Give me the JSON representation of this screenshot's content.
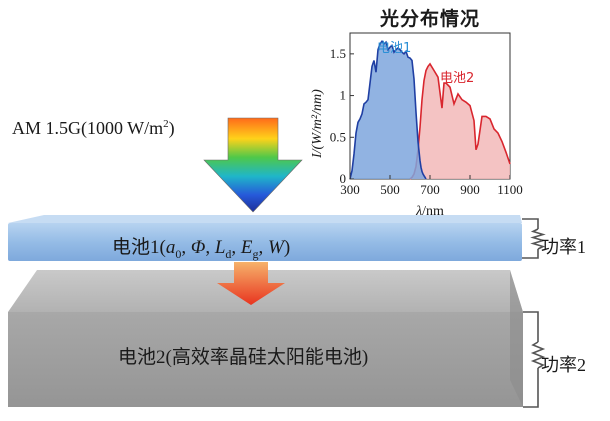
{
  "illumination": {
    "label_prefix": "AM 1.5G(1000 W/m",
    "label_exp": "2",
    "label_suffix": ")"
  },
  "cell1": {
    "name": "电池1",
    "params_open": "(",
    "a0_sym": "a",
    "a0_sub": "0",
    "phi_sym": "Φ",
    "ld_sym": "L",
    "ld_sub": "d",
    "eg_sym": "E",
    "eg_sub": "g",
    "w_sym": "W",
    "sep": ", ",
    "params_close": ")"
  },
  "cell2": {
    "label": "电池2(高效率晶硅太阳能电池)"
  },
  "loads": {
    "load1": "功率1",
    "load2": "功率2"
  },
  "colors": {
    "cell1_fill": "#9cc2e8",
    "cell2_fill": "#a9a9a9",
    "curve_cell1": "#1f3fa3",
    "curve_cell2": "#d9262e",
    "fill_cell1": "#7ea6dd",
    "fill_cell2": "#f2b9b9",
    "legend_cell1": "#2a8fd6",
    "legend_cell2": "#d9262e"
  },
  "chart_data": {
    "type": "area",
    "title": "光分布情况",
    "xlabel_sym": "λ",
    "xlabel_unit": "/nm",
    "ylabel": "I/(W/m²/nm)",
    "xlim": [
      300,
      1100
    ],
    "ylim": [
      0,
      1.75
    ],
    "xticks": [
      "300",
      "500",
      "700",
      "900",
      "1100"
    ],
    "yticks": [
      "0",
      "0.5",
      "1",
      "1.5"
    ],
    "xtick_values": [
      300,
      500,
      700,
      900,
      1100
    ],
    "ytick_values": [
      0,
      0.5,
      1,
      1.5
    ],
    "grid": false,
    "series": [
      {
        "name": "电池1",
        "x": [
          300,
          310,
          320,
          330,
          340,
          350,
          360,
          370,
          380,
          390,
          400,
          410,
          420,
          430,
          440,
          450,
          460,
          470,
          480,
          490,
          500,
          510,
          520,
          530,
          540,
          550,
          560,
          570,
          580,
          590,
          600,
          610,
          620,
          630,
          640,
          650,
          655,
          660,
          665,
          670,
          675,
          680
        ],
        "values": [
          0.0,
          0.1,
          0.3,
          0.55,
          0.68,
          0.72,
          0.78,
          0.9,
          0.92,
          0.95,
          1.15,
          1.35,
          1.42,
          1.28,
          1.55,
          1.62,
          1.65,
          1.62,
          1.64,
          1.55,
          1.58,
          1.6,
          1.52,
          1.55,
          1.57,
          1.55,
          1.52,
          1.5,
          1.53,
          1.46,
          1.45,
          1.42,
          1.2,
          0.8,
          0.45,
          0.22,
          0.14,
          0.09,
          0.06,
          0.04,
          0.02,
          0.0
        ]
      },
      {
        "name": "电池2",
        "x": [
          600,
          610,
          620,
          630,
          640,
          650,
          660,
          670,
          680,
          690,
          700,
          720,
          740,
          760,
          770,
          780,
          800,
          820,
          840,
          860,
          880,
          900,
          920,
          930,
          940,
          960,
          980,
          1000,
          1020,
          1040,
          1060,
          1080,
          1100
        ],
        "values": [
          0.0,
          0.02,
          0.06,
          0.15,
          0.35,
          0.62,
          0.95,
          1.18,
          1.3,
          1.35,
          1.38,
          1.3,
          1.22,
          0.85,
          1.15,
          1.15,
          1.1,
          0.9,
          1.02,
          0.95,
          0.92,
          0.88,
          0.7,
          0.35,
          0.42,
          0.75,
          0.75,
          0.72,
          0.6,
          0.55,
          0.45,
          0.32,
          0.18
        ]
      }
    ]
  }
}
